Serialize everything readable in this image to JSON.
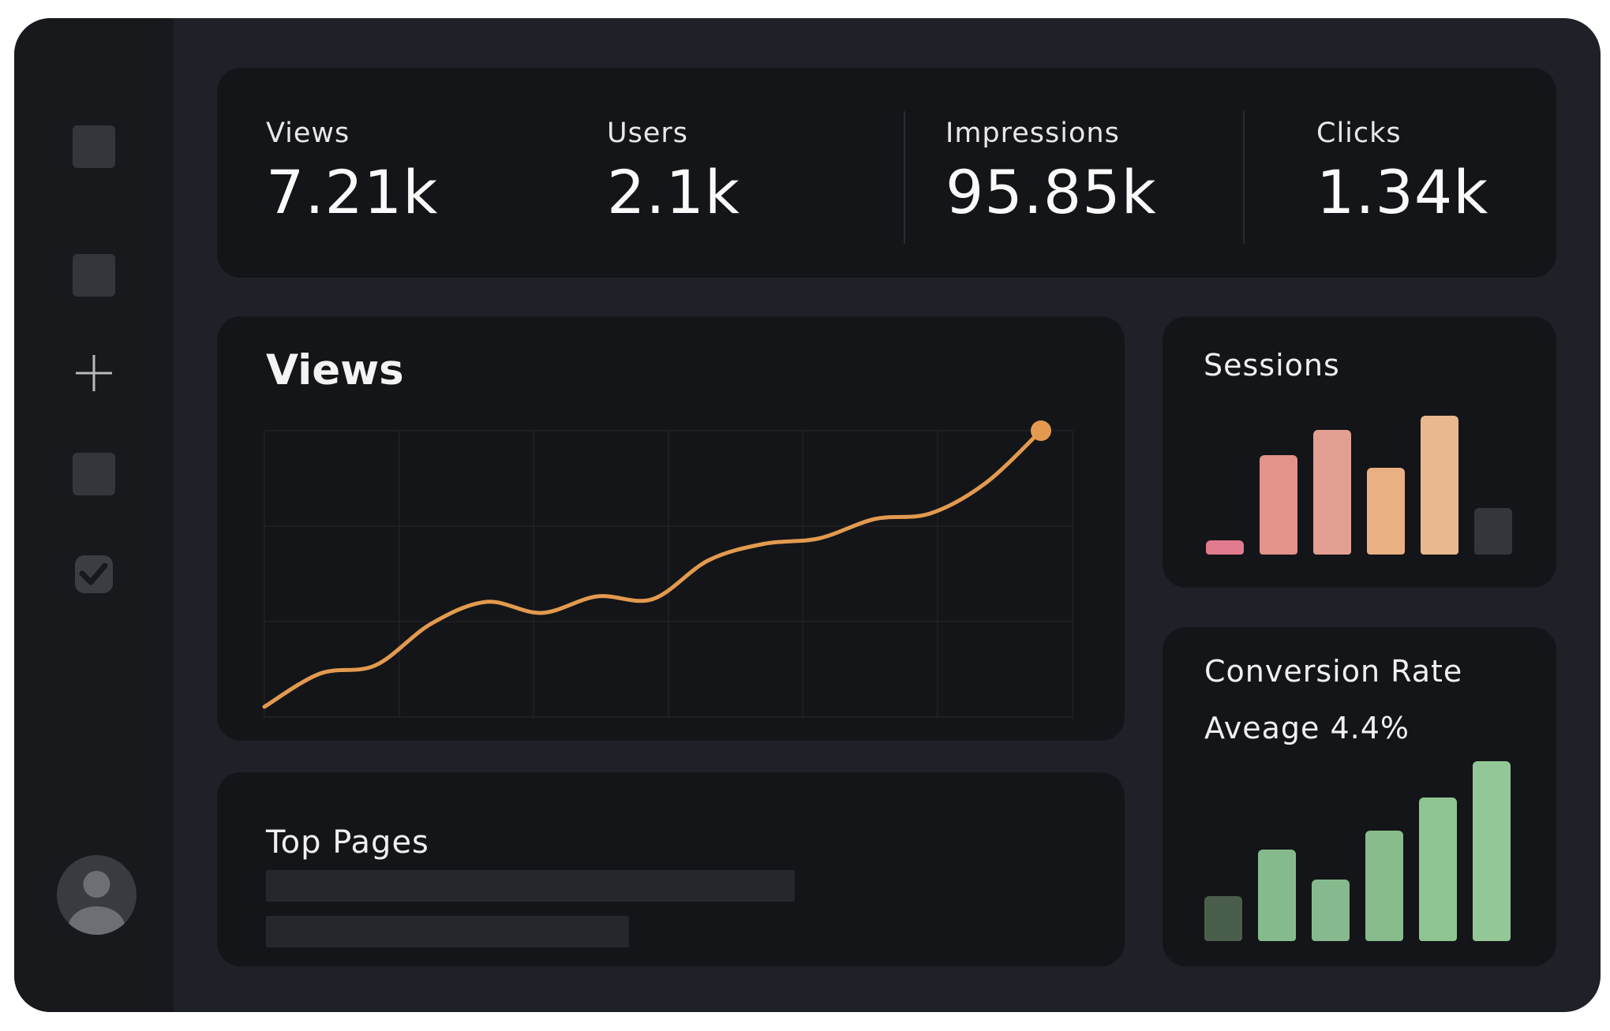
{
  "sidebar": {
    "items": [
      {
        "name": "sidebar-item-1",
        "icon": "square-icon"
      },
      {
        "name": "sidebar-item-2",
        "icon": "square-icon"
      },
      {
        "name": "sidebar-item-add",
        "icon": "plus-icon"
      },
      {
        "name": "sidebar-item-3",
        "icon": "square-icon"
      },
      {
        "name": "sidebar-item-tasks",
        "icon": "checkbox-icon"
      }
    ],
    "avatar_icon": "user-icon"
  },
  "stats": [
    {
      "label": "Views",
      "value": "7.21k"
    },
    {
      "label": "Users",
      "value": "2.1k"
    },
    {
      "label": "Impressions",
      "value": "95.85k"
    },
    {
      "label": "Clicks",
      "value": "1.34k"
    }
  ],
  "views_panel": {
    "title": "Views"
  },
  "sessions_panel": {
    "title": "Sessions"
  },
  "conversion_panel": {
    "title": "Conversion Rate",
    "subtitle": "Aveage 4.4%"
  },
  "top_pages_panel": {
    "title": "Top Pages",
    "rows": [
      0.67,
      0.46
    ]
  },
  "colors": {
    "background": "#1e2128",
    "card": "#141518",
    "line": "#e39a4f",
    "sessions_bars": [
      "#e07a8f",
      "#e3938a",
      "#e3a092",
      "#e8b083",
      "#e8b98e",
      "#33363b"
    ],
    "conversion_bars": [
      "#4a5e4c",
      "#85bb8c",
      "#87b98e",
      "#88bc8d",
      "#8fc493",
      "#93c797"
    ]
  },
  "chart_data": [
    {
      "type": "line",
      "title": "Views",
      "x": [
        0,
        1,
        2,
        3,
        4,
        5,
        6,
        7,
        8,
        9,
        10,
        11,
        12,
        13,
        14
      ],
      "series": [
        {
          "values": [
            0,
            12,
            15,
            30,
            38,
            34,
            40,
            39,
            53,
            59,
            61,
            68,
            70,
            81,
            100
          ]
        }
      ],
      "grid": true
    },
    {
      "type": "bar",
      "title": "Sessions",
      "categories": [
        "1",
        "2",
        "3",
        "4",
        "5",
        "6"
      ],
      "values": [
        0.1,
        0.7,
        0.88,
        0.61,
        0.98,
        0.33
      ]
    },
    {
      "type": "bar",
      "title": "Conversion Rate",
      "categories": [
        "1",
        "2",
        "3",
        "4",
        "5",
        "6"
      ],
      "values": [
        0.24,
        0.49,
        0.33,
        0.59,
        0.77,
        0.96
      ]
    }
  ]
}
